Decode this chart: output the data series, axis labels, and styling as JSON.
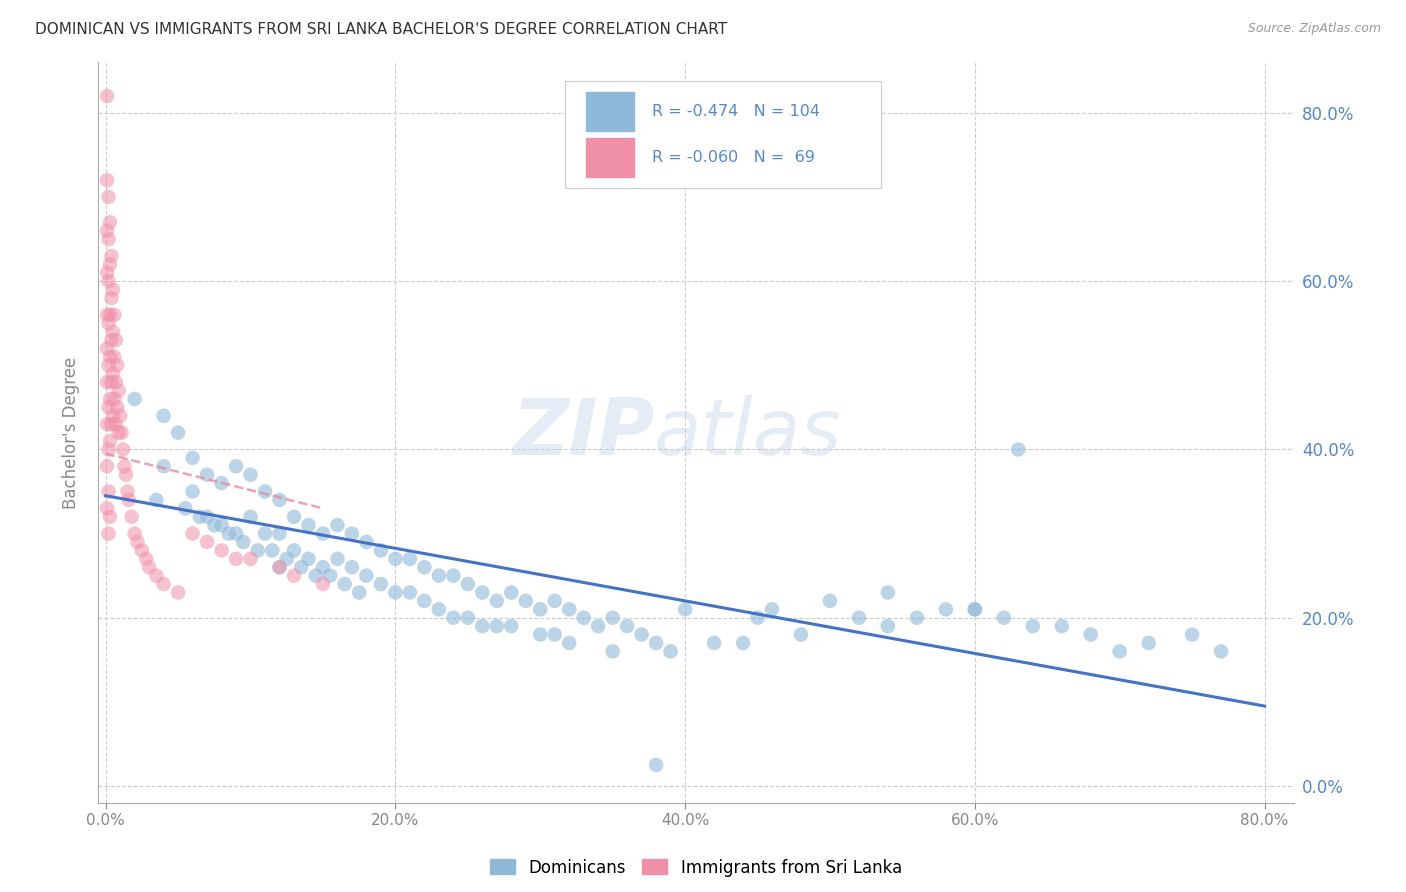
{
  "title": "DOMINICAN VS IMMIGRANTS FROM SRI LANKA BACHELOR'S DEGREE CORRELATION CHART",
  "source": "Source: ZipAtlas.com",
  "ylabel": "Bachelor's Degree",
  "xlim": [
    -0.005,
    0.82
  ],
  "ylim": [
    -0.02,
    0.86
  ],
  "xtick_vals": [
    0.0,
    0.2,
    0.4,
    0.6,
    0.8
  ],
  "ytick_vals": [
    0.0,
    0.2,
    0.4,
    0.6,
    0.8
  ],
  "legend_blue_label": "Dominicans",
  "legend_pink_label": "Immigrants from Sri Lanka",
  "blue_R": -0.474,
  "blue_N": 104,
  "pink_R": -0.06,
  "pink_N": 69,
  "blue_color": "#90B8D8",
  "pink_color": "#F090A8",
  "blue_line_color": "#4472C4",
  "pink_line_color": "#E8849A",
  "label_color": "#5588CC",
  "watermark_zip": "ZIP",
  "watermark_atlas": "atlas",
  "blue_scatter_x": [
    0.02,
    0.04,
    0.04,
    0.05,
    0.06,
    0.06,
    0.07,
    0.07,
    0.08,
    0.08,
    0.09,
    0.09,
    0.1,
    0.1,
    0.11,
    0.11,
    0.12,
    0.12,
    0.12,
    0.13,
    0.13,
    0.14,
    0.14,
    0.15,
    0.15,
    0.16,
    0.16,
    0.17,
    0.17,
    0.18,
    0.18,
    0.19,
    0.19,
    0.2,
    0.2,
    0.21,
    0.21,
    0.22,
    0.22,
    0.23,
    0.23,
    0.24,
    0.24,
    0.25,
    0.25,
    0.26,
    0.26,
    0.27,
    0.27,
    0.28,
    0.28,
    0.29,
    0.3,
    0.3,
    0.31,
    0.31,
    0.32,
    0.32,
    0.33,
    0.34,
    0.35,
    0.35,
    0.36,
    0.37,
    0.38,
    0.39,
    0.4,
    0.42,
    0.44,
    0.45,
    0.46,
    0.48,
    0.5,
    0.52,
    0.54,
    0.56,
    0.58,
    0.6,
    0.62,
    0.64,
    0.66,
    0.68,
    0.7,
    0.72,
    0.035,
    0.055,
    0.065,
    0.075,
    0.085,
    0.095,
    0.105,
    0.115,
    0.125,
    0.135,
    0.145,
    0.155,
    0.165,
    0.175,
    0.38,
    0.54,
    0.6,
    0.63,
    0.75,
    0.77
  ],
  "blue_scatter_y": [
    0.46,
    0.44,
    0.38,
    0.42,
    0.39,
    0.35,
    0.37,
    0.32,
    0.36,
    0.31,
    0.38,
    0.3,
    0.37,
    0.32,
    0.35,
    0.3,
    0.34,
    0.3,
    0.26,
    0.32,
    0.28,
    0.31,
    0.27,
    0.3,
    0.26,
    0.31,
    0.27,
    0.3,
    0.26,
    0.29,
    0.25,
    0.28,
    0.24,
    0.27,
    0.23,
    0.27,
    0.23,
    0.26,
    0.22,
    0.25,
    0.21,
    0.25,
    0.2,
    0.24,
    0.2,
    0.23,
    0.19,
    0.22,
    0.19,
    0.23,
    0.19,
    0.22,
    0.21,
    0.18,
    0.22,
    0.18,
    0.21,
    0.17,
    0.2,
    0.19,
    0.2,
    0.16,
    0.19,
    0.18,
    0.17,
    0.16,
    0.21,
    0.17,
    0.17,
    0.2,
    0.21,
    0.18,
    0.22,
    0.2,
    0.19,
    0.2,
    0.21,
    0.21,
    0.2,
    0.19,
    0.19,
    0.18,
    0.16,
    0.17,
    0.34,
    0.33,
    0.32,
    0.31,
    0.3,
    0.29,
    0.28,
    0.28,
    0.27,
    0.26,
    0.25,
    0.25,
    0.24,
    0.23,
    0.025,
    0.23,
    0.21,
    0.4,
    0.18,
    0.16
  ],
  "pink_scatter_x": [
    0.001,
    0.001,
    0.001,
    0.001,
    0.001,
    0.001,
    0.001,
    0.001,
    0.002,
    0.002,
    0.002,
    0.002,
    0.002,
    0.002,
    0.002,
    0.003,
    0.003,
    0.003,
    0.003,
    0.003,
    0.003,
    0.004,
    0.004,
    0.004,
    0.004,
    0.004,
    0.005,
    0.005,
    0.005,
    0.005,
    0.006,
    0.006,
    0.006,
    0.007,
    0.007,
    0.007,
    0.008,
    0.008,
    0.009,
    0.009,
    0.01,
    0.011,
    0.012,
    0.013,
    0.014,
    0.015,
    0.016,
    0.018,
    0.02,
    0.022,
    0.025,
    0.028,
    0.03,
    0.035,
    0.04,
    0.05,
    0.06,
    0.07,
    0.08,
    0.09,
    0.1,
    0.12,
    0.13,
    0.15,
    0.001,
    0.001,
    0.002,
    0.002,
    0.003
  ],
  "pink_scatter_y": [
    0.82,
    0.72,
    0.66,
    0.61,
    0.56,
    0.52,
    0.48,
    0.43,
    0.7,
    0.65,
    0.6,
    0.55,
    0.5,
    0.45,
    0.4,
    0.67,
    0.62,
    0.56,
    0.51,
    0.46,
    0.41,
    0.63,
    0.58,
    0.53,
    0.48,
    0.43,
    0.59,
    0.54,
    0.49,
    0.44,
    0.56,
    0.51,
    0.46,
    0.53,
    0.48,
    0.43,
    0.5,
    0.45,
    0.47,
    0.42,
    0.44,
    0.42,
    0.4,
    0.38,
    0.37,
    0.35,
    0.34,
    0.32,
    0.3,
    0.29,
    0.28,
    0.27,
    0.26,
    0.25,
    0.24,
    0.23,
    0.3,
    0.29,
    0.28,
    0.27,
    0.27,
    0.26,
    0.25,
    0.24,
    0.38,
    0.33,
    0.35,
    0.3,
    0.32
  ]
}
